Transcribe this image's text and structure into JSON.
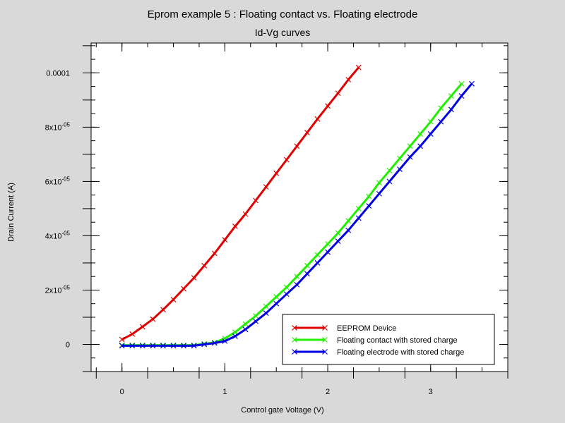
{
  "chart_data": {
    "type": "line",
    "title": "Eprom example 5  : Floating contact vs. Floating electrode",
    "subtitle": "Id-Vg curves",
    "xlabel": "Control gate Voltage (V)",
    "ylabel": "Drain Current (A)",
    "xlim": [
      -0.3,
      3.75
    ],
    "ylim": [
      -1e-05,
      0.000111
    ],
    "x_ticks": [
      0,
      1,
      2,
      3
    ],
    "x_tick_labels": [
      "0",
      "1",
      "2",
      "3"
    ],
    "y_ticks": [
      0,
      2e-05,
      4e-05,
      6e-05,
      8e-05,
      0.0001
    ],
    "y_tick_labels": [
      {
        "mant": "0",
        "exp": ""
      },
      {
        "mant": "2x10",
        "exp": "-05"
      },
      {
        "mant": "4x10",
        "exp": "-05"
      },
      {
        "mant": "6x10",
        "exp": "-05"
      },
      {
        "mant": "8x10",
        "exp": "-05"
      },
      {
        "mant": "0.0001",
        "exp": ""
      }
    ],
    "grid": false,
    "legend_position": "bottom-right",
    "series": [
      {
        "name": "EEPROM Device",
        "color": "#e00000",
        "x": [
          0,
          0.1,
          0.2,
          0.3,
          0.4,
          0.5,
          0.6,
          0.7,
          0.8,
          0.9,
          1.0,
          1.1,
          1.2,
          1.3,
          1.4,
          1.5,
          1.6,
          1.7,
          1.8,
          1.9,
          2.0,
          2.1,
          2.2,
          2.3
        ],
        "y": [
          1.8e-06,
          3.8e-06,
          6.5e-06,
          9.3e-06,
          1.28e-05,
          1.65e-05,
          2.05e-05,
          2.45e-05,
          2.9e-05,
          3.35e-05,
          3.85e-05,
          4.35e-05,
          4.8e-05,
          5.3e-05,
          5.8e-05,
          6.3e-05,
          6.8e-05,
          7.3e-05,
          7.8e-05,
          8.3e-05,
          8.78e-05,
          9.25e-05,
          9.75e-05,
          0.000102
        ]
      },
      {
        "name": "Floating contact with stored charge",
        "color": "#22ee00",
        "x": [
          0,
          0.1,
          0.2,
          0.3,
          0.4,
          0.5,
          0.6,
          0.7,
          0.8,
          0.9,
          1.0,
          1.1,
          1.2,
          1.3,
          1.4,
          1.5,
          1.6,
          1.7,
          1.8,
          1.9,
          2.0,
          2.1,
          2.2,
          2.3,
          2.4,
          2.5,
          2.6,
          2.7,
          2.8,
          2.9,
          3.0,
          3.1,
          3.2,
          3.3
        ],
        "y": [
          -3e-07,
          -3e-07,
          -3e-07,
          -3e-07,
          -3e-07,
          -3e-07,
          -3e-07,
          -3e-07,
          2e-07,
          7e-07,
          2.2e-06,
          4.5e-06,
          7.5e-06,
          1.05e-05,
          1.4e-05,
          1.75e-05,
          2.1e-05,
          2.5e-05,
          2.9e-05,
          3.3e-05,
          3.7e-05,
          4.1e-05,
          4.55e-05,
          5e-05,
          5.45e-05,
          5.95e-05,
          6.4e-05,
          6.85e-05,
          7.3e-05,
          7.75e-05,
          8.2e-05,
          8.7e-05,
          9.15e-05,
          9.6e-05
        ]
      },
      {
        "name": "Floating electrode with stored charge",
        "color": "#0000e0",
        "x": [
          0,
          0.1,
          0.2,
          0.3,
          0.4,
          0.5,
          0.6,
          0.7,
          0.8,
          0.9,
          1.0,
          1.1,
          1.2,
          1.3,
          1.4,
          1.5,
          1.6,
          1.7,
          1.8,
          1.9,
          2.0,
          2.1,
          2.2,
          2.3,
          2.4,
          2.5,
          2.6,
          2.7,
          2.8,
          2.9,
          3.0,
          3.1,
          3.2,
          3.3,
          3.4
        ],
        "y": [
          -5e-07,
          -5e-07,
          -5e-07,
          -5e-07,
          -5e-07,
          -5e-07,
          -5e-07,
          -5e-07,
          0,
          5e-07,
          1.2e-06,
          3e-06,
          5.5e-06,
          8.5e-06,
          1.15e-05,
          1.5e-05,
          1.85e-05,
          2.2e-05,
          2.6e-05,
          3e-05,
          3.4e-05,
          3.8e-05,
          4.2e-05,
          4.65e-05,
          5.1e-05,
          5.55e-05,
          6e-05,
          6.45e-05,
          6.9e-05,
          7.3e-05,
          7.75e-05,
          8.2e-05,
          8.65e-05,
          9.15e-05,
          9.6e-05
        ]
      }
    ]
  }
}
